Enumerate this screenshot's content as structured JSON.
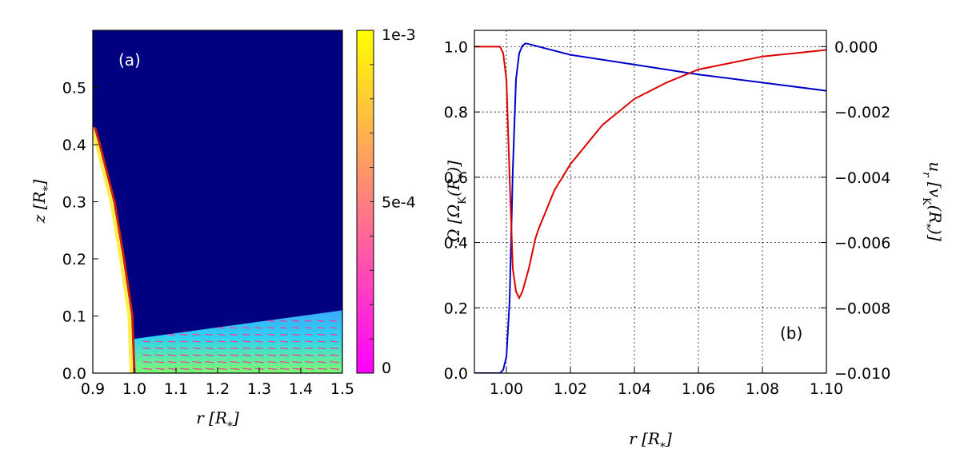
{
  "colors": {
    "blue": "#0000cc",
    "red": "#dd0000",
    "map_bg": "#000080"
  },
  "chart_data": [
    {
      "type": "heatmap",
      "panel_label": "(a)",
      "xlabel": "r [R*]",
      "ylabel": "z [R*]",
      "xlim": [
        0.9,
        1.5
      ],
      "ylim": [
        0.0,
        0.6
      ],
      "xticks": [
        "0.9",
        "1.0",
        "1.1",
        "1.2",
        "1.3",
        "1.4",
        "1.5"
      ],
      "yticks": [
        "0.0",
        "0.1",
        "0.2",
        "0.3",
        "0.4",
        "0.5"
      ],
      "colorbar": {
        "ticks": [
          "1e-3",
          "5e-4",
          "0"
        ],
        "range": [
          0,
          0.001
        ],
        "colormap": "spring"
      },
      "stellar_surface_r_at_z": [
        [
          0.0,
          1.0
        ],
        [
          0.1,
          0.995
        ],
        [
          0.2,
          0.975
        ],
        [
          0.3,
          0.952
        ],
        [
          0.4,
          0.917
        ],
        [
          0.43,
          0.905
        ]
      ],
      "flow_layer_top_z": [
        [
          1.0,
          0.06
        ],
        [
          1.1,
          0.07
        ],
        [
          1.2,
          0.08
        ],
        [
          1.3,
          0.09
        ],
        [
          1.4,
          0.1
        ],
        [
          1.5,
          0.11
        ]
      ],
      "grid": false
    },
    {
      "type": "line",
      "panel_label": "(b)",
      "xlabel": "r [R*]",
      "ylabel": "Ω [ΩK(R*)]",
      "ylabel_right": "ur [vK(R*)]",
      "xlim": [
        0.99,
        1.1
      ],
      "ylim": [
        0.0,
        1.05
      ],
      "ylim_right": [
        -0.01,
        0.0005
      ],
      "xticks": [
        "1.00",
        "1.02",
        "1.04",
        "1.06",
        "1.08",
        "1.10"
      ],
      "yticks": [
        "0.0",
        "0.2",
        "0.4",
        "0.6",
        "0.8",
        "1.0"
      ],
      "yticks_right": [
        "0.000",
        "−0.002",
        "−0.004",
        "−0.006",
        "−0.008",
        "−0.010"
      ],
      "grid": true,
      "series": [
        {
          "axis": "left",
          "color": "#0000cc",
          "x": [
            0.99,
            0.998,
            0.999,
            1.0,
            1.001,
            1.002,
            1.003,
            1.004,
            1.005,
            1.006,
            1.007,
            1.02,
            1.04,
            1.06,
            1.08,
            1.1
          ],
          "y": [
            0.0,
            0.0,
            0.01,
            0.05,
            0.22,
            0.62,
            0.9,
            0.98,
            1.003,
            1.01,
            1.008,
            0.975,
            0.945,
            0.915,
            0.89,
            0.865
          ]
        },
        {
          "axis": "right",
          "color": "#dd0000",
          "x": [
            0.99,
            0.995,
            0.998,
            0.999,
            1.0,
            1.001,
            1.002,
            1.003,
            1.004,
            1.005,
            1.007,
            1.009,
            1.01,
            1.015,
            1.02,
            1.03,
            1.04,
            1.05,
            1.06,
            1.07,
            1.08,
            1.09,
            1.1
          ],
          "y": [
            0.0,
            0.0,
            0.0,
            -0.0002,
            -0.001,
            -0.004,
            -0.0068,
            -0.0075,
            -0.0077,
            -0.0075,
            -0.0068,
            -0.0059,
            -0.0056,
            -0.0044,
            -0.0036,
            -0.0024,
            -0.0016,
            -0.0011,
            -0.0007,
            -0.0005,
            -0.0003,
            -0.0002,
            -0.0001
          ]
        }
      ]
    }
  ]
}
